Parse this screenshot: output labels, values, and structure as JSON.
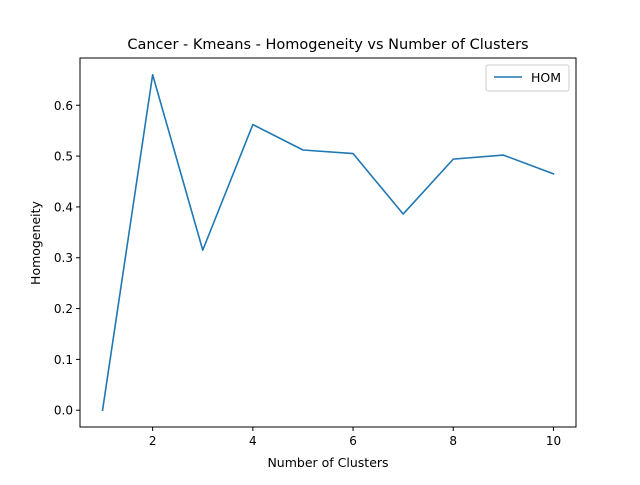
{
  "chart_data": {
    "type": "line",
    "title": "Cancer - Kmeans - Homogeneity vs Number of Clusters",
    "xlabel": "Number of Clusters",
    "ylabel": "Homogeneity",
    "x": [
      1,
      2,
      3,
      4,
      5,
      6,
      7,
      8,
      9,
      10
    ],
    "series": [
      {
        "name": "HOM",
        "color": "#1f77b4",
        "values": [
          0.0,
          0.66,
          0.315,
          0.562,
          0.512,
          0.505,
          0.386,
          0.494,
          0.502,
          0.465
        ]
      }
    ],
    "xlim": [
      0.55,
      10.45
    ],
    "ylim": [
      -0.033,
      0.693
    ],
    "xticks": [
      2,
      4,
      6,
      8,
      10
    ],
    "xtick_labels": [
      "2",
      "4",
      "6",
      "8",
      "10"
    ],
    "yticks": [
      0.0,
      0.1,
      0.2,
      0.3,
      0.4,
      0.5,
      0.6
    ],
    "ytick_labels": [
      "0.0",
      "0.1",
      "0.2",
      "0.3",
      "0.4",
      "0.5",
      "0.6"
    ],
    "grid": false,
    "legend_position": "top-right"
  }
}
